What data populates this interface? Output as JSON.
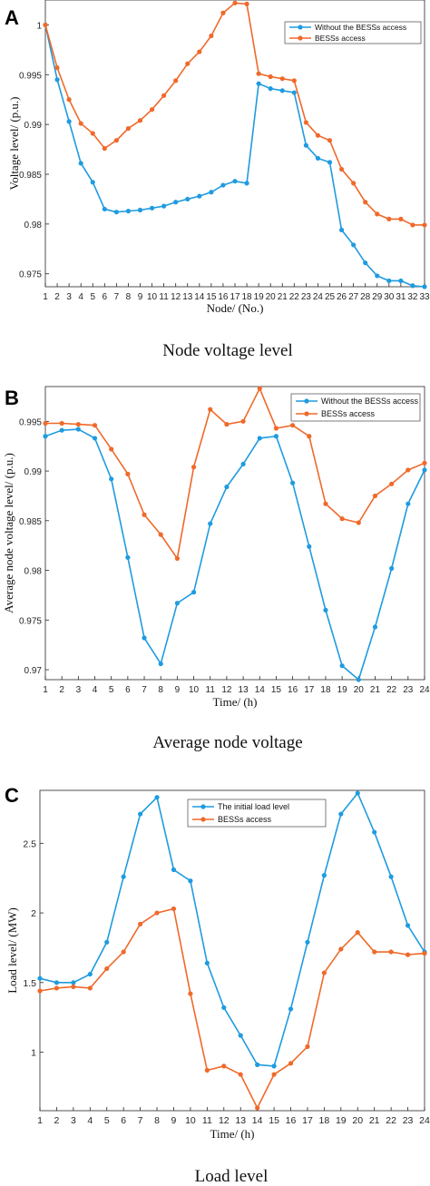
{
  "panels": [
    {
      "letter": "A",
      "caption": "Node voltage level",
      "chart_data": {
        "type": "line",
        "xlabel": "Node/ (No.)",
        "ylabel": "Voltage level/ (p.u.)",
        "x": [
          1,
          2,
          3,
          4,
          5,
          6,
          7,
          8,
          9,
          10,
          11,
          12,
          13,
          14,
          15,
          16,
          17,
          18,
          19,
          20,
          21,
          22,
          23,
          24,
          25,
          26,
          27,
          28,
          29,
          30,
          31,
          32,
          33
        ],
        "xlim": [
          1,
          33
        ],
        "ylim": [
          0.9737,
          1.0025
        ],
        "yticks": [
          0.975,
          0.98,
          0.985,
          0.99,
          0.995,
          1
        ],
        "ytick_labels": [
          "0.975",
          "0.98",
          "0.985",
          "0.99",
          "0.995",
          "1"
        ],
        "grid": false,
        "legend_position": "top-right",
        "series": [
          {
            "name": "Without the BESSs access",
            "color": "#1f9be0",
            "values": [
              1.0,
              0.9945,
              0.9903,
              0.9861,
              0.9842,
              0.9815,
              0.9812,
              0.9813,
              0.9814,
              0.9816,
              0.9818,
              0.9822,
              0.9825,
              0.9828,
              0.9832,
              0.9839,
              0.9843,
              0.9841,
              0.9941,
              0.9936,
              0.9934,
              0.9932,
              0.9879,
              0.9866,
              0.9862,
              0.9794,
              0.9779,
              0.9761,
              0.9748,
              0.9743,
              0.9743,
              0.9738,
              0.9737
            ]
          },
          {
            "name": "BESSs access",
            "color": "#f0692a",
            "values": [
              1.0,
              0.9957,
              0.9925,
              0.9901,
              0.9891,
              0.9876,
              0.9884,
              0.9896,
              0.9904,
              0.9915,
              0.9929,
              0.9944,
              0.9961,
              0.9973,
              0.9989,
              1.0012,
              1.0022,
              1.0021,
              0.9951,
              0.9948,
              0.9946,
              0.9944,
              0.9902,
              0.9889,
              0.9884,
              0.9855,
              0.9841,
              0.9822,
              0.981,
              0.9805,
              0.9805,
              0.9799,
              0.9799
            ]
          }
        ]
      }
    },
    {
      "letter": "B",
      "caption": "Average node voltage",
      "chart_data": {
        "type": "line",
        "xlabel": "Time/ (h)",
        "ylabel": "Average node voltage level/ (p.u.)",
        "x": [
          1,
          2,
          3,
          4,
          5,
          6,
          7,
          8,
          9,
          10,
          11,
          12,
          13,
          14,
          15,
          16,
          17,
          18,
          19,
          20,
          21,
          22,
          23,
          24
        ],
        "xlim": [
          1,
          24
        ],
        "ylim": [
          0.969,
          0.9985
        ],
        "yticks": [
          0.97,
          0.975,
          0.98,
          0.985,
          0.99,
          0.995
        ],
        "ytick_labels": [
          "0.97",
          "0.975",
          "0.98",
          "0.985",
          "0.99",
          "0.995"
        ],
        "grid": false,
        "legend_position": "top-right",
        "series": [
          {
            "name": "Without the BESSs access",
            "color": "#1f9be0",
            "values": [
              0.9935,
              0.9941,
              0.9942,
              0.9933,
              0.9892,
              0.9813,
              0.9732,
              0.9706,
              0.9767,
              0.9778,
              0.9847,
              0.9884,
              0.9907,
              0.9933,
              0.9935,
              0.9888,
              0.9824,
              0.976,
              0.9704,
              0.969,
              0.9743,
              0.9802,
              0.9867,
              0.9901
            ]
          },
          {
            "name": "BESSs access",
            "color": "#f0692a",
            "values": [
              0.9948,
              0.9948,
              0.9947,
              0.9946,
              0.9922,
              0.9897,
              0.9856,
              0.9836,
              0.9812,
              0.9904,
              0.9962,
              0.9947,
              0.995,
              0.9983,
              0.9943,
              0.9946,
              0.9935,
              0.9867,
              0.9852,
              0.9848,
              0.9875,
              0.9887,
              0.9901,
              0.9908
            ]
          }
        ]
      }
    },
    {
      "letter": "C",
      "caption": "Load level",
      "chart_data": {
        "type": "line",
        "xlabel": "Time/ (h)",
        "ylabel": "Load level/ (MW)",
        "x": [
          1,
          2,
          3,
          4,
          5,
          6,
          7,
          8,
          9,
          10,
          11,
          12,
          13,
          14,
          15,
          16,
          17,
          18,
          19,
          20,
          21,
          22,
          23,
          24
        ],
        "xlim": [
          1,
          24
        ],
        "ylim": [
          0.58,
          2.88
        ],
        "yticks": [
          1,
          1.5,
          2,
          2.5
        ],
        "ytick_labels": [
          "1",
          "1.5",
          "2",
          "2.5"
        ],
        "grid": false,
        "legend_position": "top-center",
        "series": [
          {
            "name": "The initial load level",
            "color": "#1f9be0",
            "values": [
              1.53,
              1.5,
              1.5,
              1.56,
              1.79,
              2.26,
              2.71,
              2.83,
              2.31,
              2.23,
              1.64,
              1.32,
              1.12,
              0.91,
              0.9,
              1.31,
              1.79,
              2.27,
              2.71,
              2.86,
              2.58,
              2.26,
              1.91,
              1.72
            ]
          },
          {
            "name": "BESSs access",
            "color": "#f0692a",
            "values": [
              1.44,
              1.46,
              1.47,
              1.46,
              1.6,
              1.72,
              1.92,
              2.0,
              2.03,
              1.42,
              0.87,
              0.9,
              0.84,
              0.6,
              0.84,
              0.92,
              1.04,
              1.57,
              1.74,
              1.86,
              1.72,
              1.72,
              1.7,
              1.71
            ]
          }
        ]
      }
    }
  ]
}
